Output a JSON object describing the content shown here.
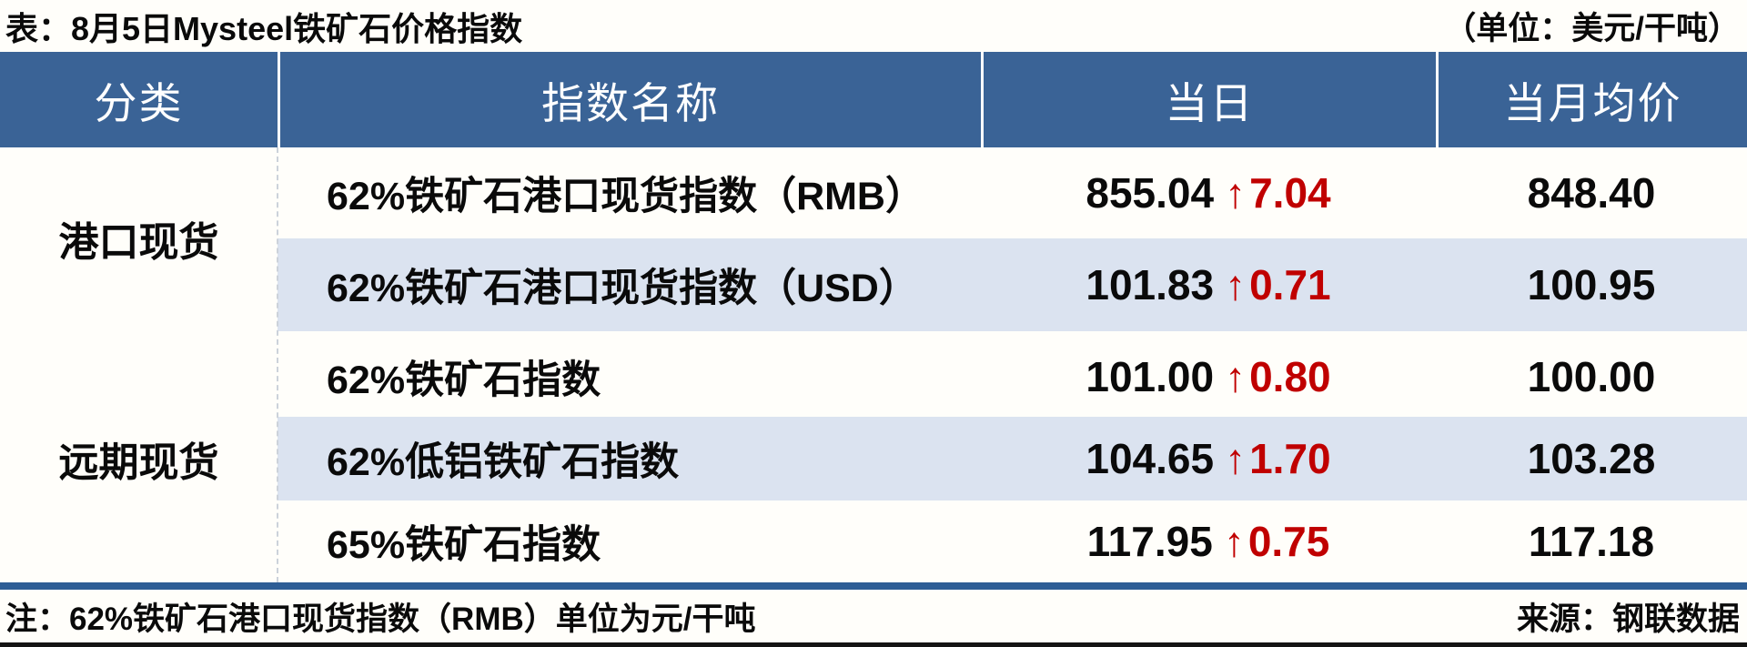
{
  "header": {
    "title": "表：8月5日Mysteel铁矿石价格指数",
    "unit_label": "（单位：美元/干吨）"
  },
  "chart_data": {
    "type": "table",
    "title": "8月5日Mysteel铁矿石价格指数",
    "unit": "美元/干吨",
    "columns": [
      "分类",
      "指数名称",
      "当日",
      "当月均价"
    ],
    "groups": [
      {
        "category": "港口现货",
        "rows": [
          {
            "name": "62%铁矿石港口现货指数（RMB）",
            "value": "855.04",
            "arrow": "↑",
            "change": "7.04",
            "avg": "848.40"
          },
          {
            "name": "62%铁矿石港口现货指数（USD）",
            "value": "101.83",
            "arrow": "↑",
            "change": "0.71",
            "avg": "100.95"
          }
        ]
      },
      {
        "category": "远期现货",
        "rows": [
          {
            "name": "62%铁矿石指数",
            "value": "101.00",
            "arrow": "↑",
            "change": "0.80",
            "avg": "100.00"
          },
          {
            "name": "62%低铝铁矿石指数",
            "value": "104.65",
            "arrow": "↑",
            "change": "1.70",
            "avg": "103.28"
          },
          {
            "name": "65%铁矿石指数",
            "value": "117.95",
            "arrow": "↑",
            "change": "0.75",
            "avg": "117.18"
          }
        ]
      }
    ]
  },
  "footer": {
    "note": "注：62%铁矿石港口现货指数（RMB）单位为元/干吨",
    "source": "来源：钢联数据"
  },
  "colors": {
    "header_bg": "#3a6396",
    "row_alt_bg": "#dbe3f0",
    "up_red": "#c00000",
    "divider_bar": "#2d5d95"
  }
}
